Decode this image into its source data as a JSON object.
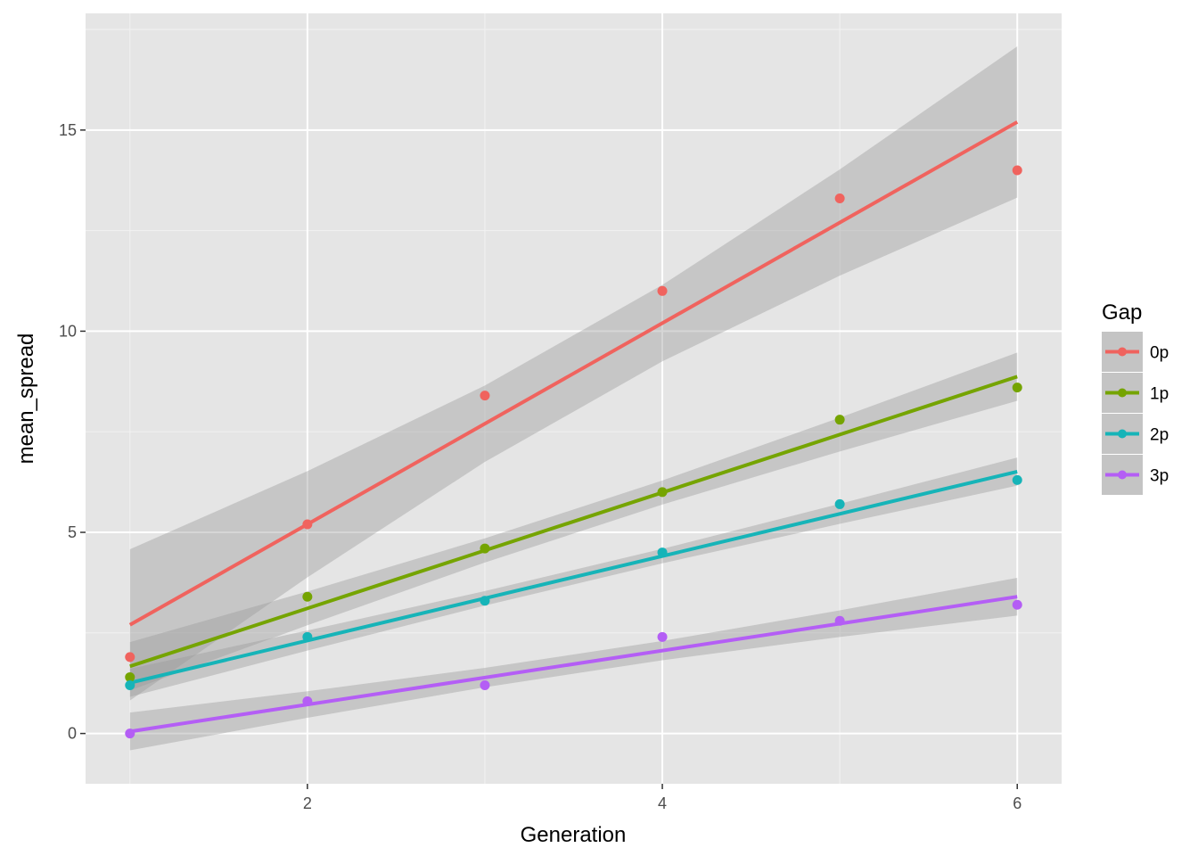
{
  "chart_data": {
    "type": "scatter",
    "xlabel": "Generation",
    "ylabel": "mean_spread",
    "xlim": [
      0.75,
      6.25
    ],
    "ylim": [
      -1.25,
      17.9
    ],
    "x_ticks": [
      2,
      4,
      6
    ],
    "y_ticks": [
      0,
      5,
      10,
      15
    ],
    "grid": true,
    "background": "#e5e5e5",
    "smoothing": "linear fit with confidence band",
    "legend": {
      "title": "Gap",
      "placement": "right"
    },
    "x": [
      1,
      2,
      3,
      4,
      5,
      6
    ],
    "series": [
      {
        "name": "0p",
        "color": "#f0635e",
        "values": [
          1.9,
          5.2,
          8.4,
          11.0,
          13.3,
          14.0
        ],
        "fit": {
          "intercept": 0.2,
          "slope": 2.5,
          "band_half": [
            1.88,
            1.32,
            0.95,
            0.95,
            1.32,
            1.88
          ]
        }
      },
      {
        "name": "1p",
        "color": "#75a400",
        "values": [
          1.4,
          3.4,
          4.6,
          6.0,
          7.8,
          8.6
        ],
        "fit": {
          "intercept": 0.23,
          "slope": 1.44,
          "band_half": [
            0.6,
            0.42,
            0.3,
            0.3,
            0.42,
            0.6
          ]
        }
      },
      {
        "name": "2p",
        "color": "#16b4b8",
        "values": [
          1.2,
          2.4,
          3.3,
          4.5,
          5.7,
          6.3
        ],
        "fit": {
          "intercept": 0.21,
          "slope": 1.05,
          "band_half": [
            0.35,
            0.25,
            0.18,
            0.18,
            0.25,
            0.35
          ]
        }
      },
      {
        "name": "3p",
        "color": "#b45ef5",
        "values": [
          0.0,
          0.8,
          1.2,
          2.4,
          2.8,
          3.2
        ],
        "fit": {
          "intercept": -0.62,
          "slope": 0.67,
          "band_half": [
            0.47,
            0.33,
            0.24,
            0.24,
            0.33,
            0.47
          ]
        }
      }
    ]
  }
}
